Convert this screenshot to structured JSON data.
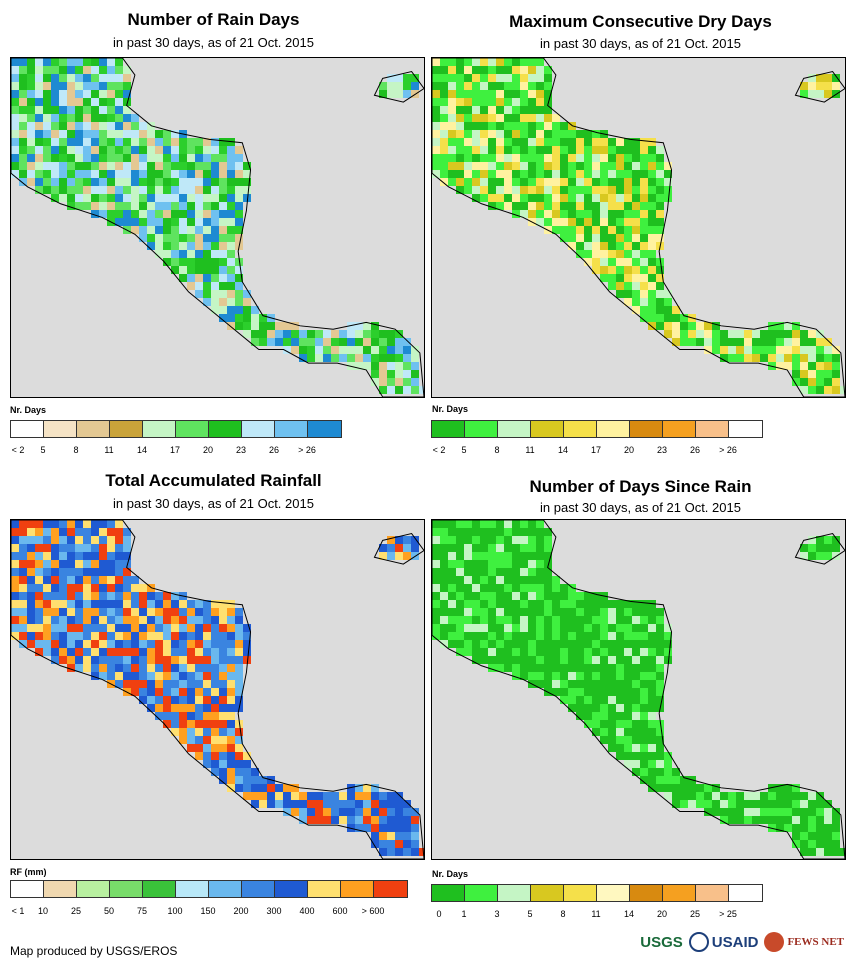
{
  "panels": [
    {
      "title": "Number of Rain Days",
      "subtitle": "in past 30 days, as of 21 Oct. 2015",
      "legend_title": "Nr. Days",
      "legend_colors": [
        "#ffffff",
        "#f5e3c5",
        "#e3c893",
        "#c9a33a",
        "#c5f5c5",
        "#5fe35f",
        "#1fbf1f",
        "#bfe8f8",
        "#6fc1f0",
        "#1e8ad2"
      ],
      "legend_labels": [
        "< 2",
        "5",
        "8",
        "11",
        "14",
        "17",
        "20",
        "23",
        "26",
        "> 26"
      ],
      "palette": [
        "#1fbf1f",
        "#2ccf2c",
        "#5fe35f",
        "#bfe8f8",
        "#6fc1f0",
        "#c5f5c5",
        "#e3c893",
        "#1e8ad2"
      ]
    },
    {
      "title": "Maximum Consecutive Dry Days",
      "subtitle": "in past 30 days, as of 21 Oct. 2015",
      "legend_title": "Nr. Days",
      "legend_colors": [
        "#1fbf1f",
        "#3ff03f",
        "#c5f5c5",
        "#d8c820",
        "#f5e04a",
        "#fff2a0",
        "#d88a10",
        "#f5a020",
        "#f8c08a",
        "#ffffff"
      ],
      "legend_labels": [
        "< 2",
        "5",
        "8",
        "11",
        "14",
        "17",
        "20",
        "23",
        "26",
        "> 26"
      ],
      "palette": [
        "#1fbf1f",
        "#1fbf1f",
        "#3ff03f",
        "#3ff03f",
        "#c5f5c5",
        "#d8c820",
        "#f5e04a",
        "#fff2a0"
      ]
    },
    {
      "title": "Total Accumulated Rainfall",
      "subtitle": "in past 30 days, as of 21 Oct. 2015",
      "legend_title": "RF (mm)",
      "legend_colors": [
        "#ffffff",
        "#f0d8b0",
        "#b8f0a0",
        "#78dc6a",
        "#3ac23a",
        "#b8e8f8",
        "#6ab8ee",
        "#3a84e0",
        "#1f5ad2",
        "#ffe070",
        "#ffa020",
        "#f04010"
      ],
      "legend_labels": [
        "< 1",
        "10",
        "25",
        "50",
        "75",
        "100",
        "150",
        "200",
        "300",
        "400",
        "600",
        "> 600"
      ],
      "palette": [
        "#1f5ad2",
        "#3a84e0",
        "#3a84e0",
        "#6ab8ee",
        "#ffe070",
        "#ffa020",
        "#f04010",
        "#1f5ad2"
      ]
    },
    {
      "title": "Number of Days Since Rain",
      "subtitle": "in past 30 days, as of 21 Oct. 2015",
      "legend_title": "Nr. Days",
      "legend_colors": [
        "#1fbf1f",
        "#3ff03f",
        "#c5f5c5",
        "#d8c820",
        "#f5e04a",
        "#fff8c0",
        "#d88a10",
        "#f5a020",
        "#f8c08a",
        "#ffffff"
      ],
      "legend_labels": [
        "0",
        "1",
        "3",
        "5",
        "8",
        "11",
        "14",
        "20",
        "25",
        "> 25"
      ],
      "palette": [
        "#1fbf1f",
        "#1fbf1f",
        "#1fbf1f",
        "#1fbf1f",
        "#3ff03f",
        "#3ff03f",
        "#c5f5c5",
        "#1fbf1f"
      ]
    }
  ],
  "footer": {
    "credit": "Map produced by USGS/EROS"
  },
  "logos": {
    "usgs": "USGS",
    "usaid": "USAID",
    "fews": "FEWS NET"
  }
}
